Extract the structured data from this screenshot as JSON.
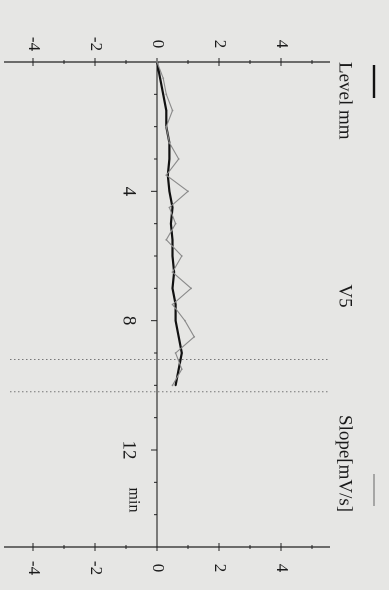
{
  "chart_data": {
    "type": "line",
    "title": "V5",
    "xlabel": "min",
    "ylabel_left": "Level mm",
    "ylabel_right": "Slope[mV/s]",
    "xlim": [
      0,
      15
    ],
    "ylim_left": [
      -4.5,
      4.5
    ],
    "ylim_right": [
      -4.5,
      4.5
    ],
    "x_ticks": [
      4,
      8,
      12
    ],
    "y_ticks_left": [
      -4,
      -2,
      0,
      2,
      4
    ],
    "y_ticks_right": [
      -4,
      -2,
      0,
      2,
      4
    ],
    "vertical_markers": [
      9.2,
      10.2
    ],
    "series": [
      {
        "role": "level",
        "color": "#111111",
        "x": [
          0,
          0.5,
          1,
          1.5,
          2,
          2.5,
          3,
          3.5,
          4,
          4.5,
          5,
          5.5,
          6,
          6.5,
          7,
          7.5,
          8,
          8.5,
          9,
          9.5,
          10
        ],
        "y": [
          0,
          0.1,
          0.2,
          0.3,
          0.3,
          0.4,
          0.4,
          0.35,
          0.4,
          0.5,
          0.45,
          0.5,
          0.5,
          0.55,
          0.5,
          0.6,
          0.6,
          0.7,
          0.8,
          0.7,
          0.6
        ]
      },
      {
        "role": "slope",
        "color": "#8a8a8a",
        "x": [
          0,
          0.5,
          1,
          1.5,
          2,
          2.5,
          3,
          3.5,
          4,
          4.5,
          5,
          5.5,
          6,
          6.5,
          7,
          7.5,
          8,
          8.5,
          9,
          9.5,
          10
        ],
        "y": [
          0,
          0.2,
          0.3,
          0.5,
          0.3,
          0.4,
          0.7,
          0.3,
          1.0,
          0.4,
          0.6,
          0.3,
          0.8,
          0.5,
          1.1,
          0.5,
          0.9,
          1.2,
          0.6,
          0.8,
          0.5
        ]
      }
    ],
    "legend": [
      {
        "color": "#111111"
      },
      {
        "color": "#8a8a8a"
      }
    ]
  }
}
